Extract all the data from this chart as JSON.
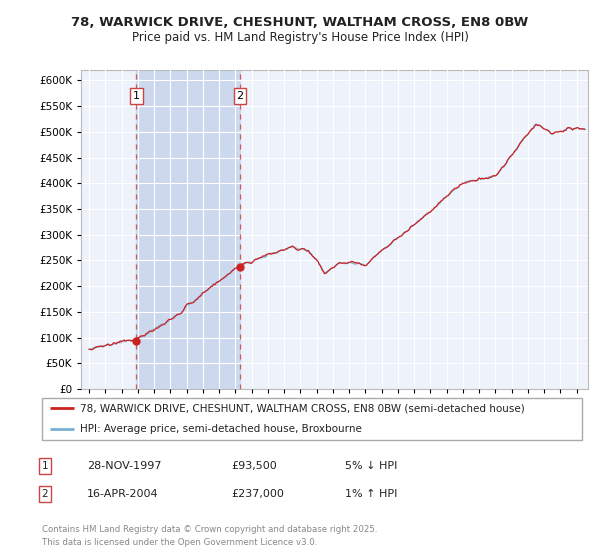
{
  "title_line1": "78, WARWICK DRIVE, CHESHUNT, WALTHAM CROSS, EN8 0BW",
  "title_line2": "Price paid vs. HM Land Registry's House Price Index (HPI)",
  "background_color": "#ffffff",
  "plot_bg_color": "#eef2fa",
  "grid_color": "#ffffff",
  "sale1_date_num": 1997.91,
  "sale1_price": 93500,
  "sale2_date_num": 2004.29,
  "sale2_price": 237000,
  "ylim_max": 620000,
  "xlim_min": 1994.5,
  "xlim_max": 2025.7,
  "legend_line1": "78, WARWICK DRIVE, CHESHUNT, WALTHAM CROSS, EN8 0BW (semi-detached house)",
  "legend_line2": "HPI: Average price, semi-detached house, Broxbourne",
  "note1_date": "28-NOV-1997",
  "note1_price": "£93,500",
  "note1_pct": "5% ↓ HPI",
  "note2_date": "16-APR-2004",
  "note2_price": "£237,000",
  "note2_pct": "1% ↑ HPI",
  "footer": "Contains HM Land Registry data © Crown copyright and database right 2025.\nThis data is licensed under the Open Government Licence v3.0.",
  "hpi_color": "#7ab0d4",
  "price_color": "#cc2222",
  "dashed_color": "#cc4444",
  "span_color": "#ccd8ee"
}
